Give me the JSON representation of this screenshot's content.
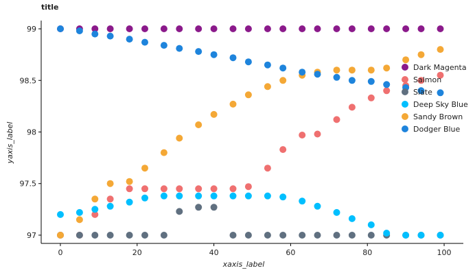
{
  "chart_data": {
    "type": "scatter",
    "title": "title",
    "xlabel": "xaxis_label",
    "ylabel": "yaxis_label",
    "xlim": [
      -5,
      105
    ],
    "ylim": [
      96.92,
      99.08
    ],
    "xticks": [
      0,
      20,
      40,
      60,
      80,
      100
    ],
    "yticks": [
      97,
      97.5,
      98,
      98.5,
      99
    ],
    "ytick_labels": [
      "97",
      "97.5",
      "98",
      "98.5",
      "99"
    ],
    "legend_position": "right",
    "grid": false,
    "series": [
      {
        "name": "Dark Magenta",
        "color": "#8b1a8b",
        "x": [
          0,
          5,
          9,
          13,
          18,
          22,
          27,
          31,
          36,
          40,
          45,
          49,
          54,
          58,
          63,
          67,
          72,
          76,
          81,
          85,
          90,
          94,
          99
        ],
        "y": [
          99,
          99,
          99,
          99,
          99,
          99,
          99,
          99,
          99,
          99,
          99,
          99,
          99,
          99,
          99,
          99,
          99,
          99,
          99,
          99,
          99,
          99,
          99
        ]
      },
      {
        "name": "Salmon",
        "color": "#ef7070",
        "x": [
          0,
          5,
          9,
          13,
          18,
          22,
          27,
          31,
          36,
          40,
          45,
          49,
          54,
          58,
          63,
          67,
          72,
          76,
          81,
          85,
          90,
          94,
          99
        ],
        "y": [
          97,
          97,
          97.2,
          97.35,
          97.45,
          97.45,
          97.45,
          97.45,
          97.45,
          97.45,
          97.45,
          97.47,
          97.65,
          97.83,
          97.97,
          97.98,
          98.12,
          98.24,
          98.33,
          98.4,
          98.45,
          98.5,
          98.55
        ]
      },
      {
        "name": "Slate",
        "color": "#607080",
        "x": [
          0,
          5,
          9,
          13,
          18,
          22,
          27,
          31,
          36,
          40,
          45,
          49,
          54,
          58,
          63,
          67,
          72,
          76,
          81,
          85,
          90,
          94,
          99
        ],
        "y": [
          97,
          97,
          97,
          97,
          97,
          97,
          97,
          97.23,
          97.27,
          97.27,
          97,
          97,
          97,
          97,
          97,
          97,
          97,
          97,
          97,
          97,
          97,
          97,
          97
        ]
      },
      {
        "name": "Deep Sky Blue",
        "color": "#00bfff",
        "x": [
          0,
          5,
          9,
          13,
          18,
          22,
          27,
          31,
          36,
          40,
          45,
          49,
          54,
          58,
          63,
          67,
          72,
          76,
          81,
          85,
          90,
          94,
          99
        ],
        "y": [
          97.2,
          97.22,
          97.25,
          97.28,
          97.32,
          97.36,
          97.38,
          97.38,
          97.38,
          97.38,
          97.38,
          97.38,
          97.38,
          97.37,
          97.33,
          97.28,
          97.22,
          97.16,
          97.1,
          97.02,
          97,
          97,
          97
        ]
      },
      {
        "name": "Sandy Brown",
        "color": "#f4a836",
        "x": [
          0,
          5,
          9,
          13,
          18,
          22,
          27,
          31,
          36,
          40,
          45,
          49,
          54,
          58,
          63,
          67,
          72,
          76,
          81,
          85,
          90,
          94,
          99
        ],
        "y": [
          97,
          97.15,
          97.35,
          97.5,
          97.52,
          97.65,
          97.8,
          97.94,
          98.07,
          98.17,
          98.27,
          98.36,
          98.44,
          98.5,
          98.55,
          98.58,
          98.6,
          98.6,
          98.6,
          98.62,
          98.7,
          98.75,
          98.8
        ]
      },
      {
        "name": "Dodger Blue",
        "color": "#1e84dc",
        "x": [
          0,
          5,
          9,
          13,
          18,
          22,
          27,
          31,
          36,
          40,
          45,
          49,
          54,
          58,
          63,
          67,
          72,
          76,
          81,
          85,
          90,
          94,
          99
        ],
        "y": [
          99,
          98.98,
          98.95,
          98.93,
          98.9,
          98.87,
          98.84,
          98.81,
          98.78,
          98.75,
          98.72,
          98.68,
          98.65,
          98.62,
          98.58,
          98.56,
          98.53,
          98.5,
          98.49,
          98.46,
          98.43,
          98.4,
          98.38
        ]
      }
    ]
  }
}
